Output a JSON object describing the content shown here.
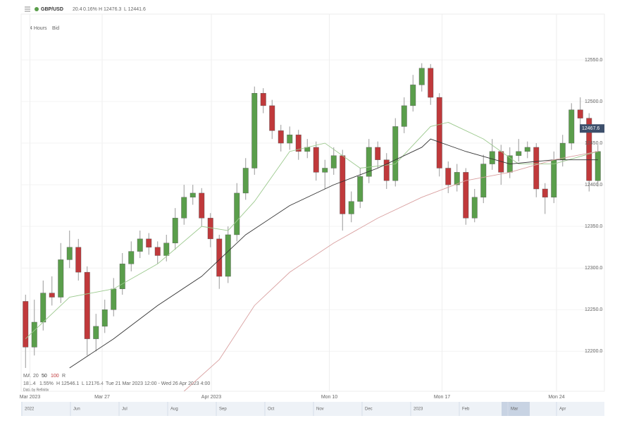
{
  "header": {
    "symbol": "GBP/USD",
    "change": "20.4",
    "change_pct": "0.16%",
    "high": "H 12476.3",
    "low": "L 12441.6",
    "interval": "4 Hours",
    "side": "Bid"
  },
  "legend": {
    "ma_label": "MA",
    "ma_periods": [
      "20",
      "50",
      "100"
    ],
    "reset": "R",
    "range_change": "181.4",
    "range_pct": "1.55%",
    "range_high": "H 12546.1",
    "range_low": "L 12176.4",
    "range_dates": "Tue 21 Mar 2023 12:00 - Wed 26 Apr 2023 4:00",
    "source": "Data by Refinitiv"
  },
  "navigator_labels": [
    "2022",
    "Jun",
    "Jul",
    "Aug",
    "Sep",
    "Oct",
    "Nov",
    "Dec",
    "2023",
    "Feb",
    "Mar",
    "Apr"
  ],
  "chart_data": {
    "type": "candlestick",
    "up_color": "#5a9e4b",
    "down_color": "#c0393b",
    "open": [
      12260,
      12205,
      12235,
      12270,
      12265,
      12310,
      12325,
      12295,
      12215,
      12230,
      12250,
      12275,
      12305,
      12320,
      12335,
      12325,
      12315,
      12330,
      12360,
      12385,
      12390,
      12360,
      12335,
      12290,
      12340,
      12390,
      12420,
      12510,
      12495,
      12465,
      12450,
      12460,
      12440,
      12445,
      12415,
      12420,
      12435,
      12365,
      12380,
      12410,
      12445,
      12430,
      12405,
      12470,
      12495,
      12520,
      12540,
      12505,
      12420,
      12400,
      12415,
      12360,
      12385,
      12425,
      12440,
      12415,
      12435,
      12440,
      12445,
      12395,
      12385,
      12430,
      12450,
      12490,
      12480,
      12405
    ],
    "high": [
      12268,
      12262,
      12285,
      12290,
      12330,
      12345,
      12335,
      12302,
      12245,
      12262,
      12288,
      12318,
      12332,
      12345,
      12342,
      12332,
      12340,
      12372,
      12400,
      12400,
      12396,
      12366,
      12340,
      12350,
      12402,
      12432,
      12518,
      12516,
      12502,
      12472,
      12470,
      12466,
      12455,
      12452,
      12430,
      12445,
      12442,
      12392,
      12420,
      12455,
      12452,
      12438,
      12480,
      12505,
      12532,
      12546,
      12545,
      12510,
      12428,
      12425,
      12420,
      12395,
      12436,
      12455,
      12448,
      12445,
      12455,
      12452,
      12450,
      12402,
      12440,
      12460,
      12498,
      12505,
      12486,
      12448
    ],
    "low": [
      12180,
      12195,
      12225,
      12255,
      12258,
      12300,
      12285,
      12195,
      12200,
      12222,
      12242,
      12268,
      12296,
      12312,
      12316,
      12305,
      12308,
      12322,
      12352,
      12376,
      12350,
      12325,
      12275,
      12282,
      12332,
      12382,
      12412,
      12486,
      12455,
      12440,
      12442,
      12430,
      12432,
      12405,
      12395,
      12412,
      12345,
      12355,
      12372,
      12402,
      12420,
      12395,
      12398,
      12462,
      12488,
      12512,
      12496,
      12410,
      12390,
      12392,
      12352,
      12355,
      12378,
      12418,
      12400,
      12408,
      12428,
      12432,
      12385,
      12365,
      12378,
      12422,
      12442,
      12472,
      12392,
      12398
    ],
    "close": [
      12205,
      12235,
      12270,
      12265,
      12310,
      12325,
      12295,
      12215,
      12230,
      12250,
      12275,
      12305,
      12320,
      12335,
      12325,
      12315,
      12330,
      12360,
      12385,
      12390,
      12360,
      12335,
      12290,
      12340,
      12390,
      12420,
      12510,
      12495,
      12465,
      12450,
      12460,
      12440,
      12445,
      12415,
      12420,
      12435,
      12365,
      12380,
      12410,
      12445,
      12430,
      12405,
      12470,
      12495,
      12520,
      12540,
      12505,
      12420,
      12400,
      12415,
      12360,
      12385,
      12425,
      12440,
      12415,
      12435,
      12440,
      12445,
      12395,
      12385,
      12430,
      12450,
      12490,
      12480,
      12405,
      12440
    ],
    "moving_averages": [
      {
        "color": "#9cc98e",
        "x": [
          0,
          5,
          10,
          15,
          20,
          23,
          26,
          30,
          34,
          38,
          42,
          46,
          48,
          52,
          56,
          60,
          65
        ],
        "values": [
          12215,
          12265,
          12275,
          12305,
          12350,
          12345,
          12380,
          12440,
          12450,
          12420,
          12425,
          12470,
          12475,
          12455,
          12425,
          12425,
          12440
        ]
      },
      {
        "color": "#333333",
        "x": [
          5,
          10,
          15,
          20,
          25,
          30,
          35,
          40,
          45,
          46,
          50,
          55,
          60,
          65
        ],
        "values": [
          12180,
          12215,
          12255,
          12290,
          12340,
          12375,
          12400,
          12420,
          12445,
          12455,
          12440,
          12425,
          12430,
          12430
        ]
      },
      {
        "color": "#d9a0a0",
        "x": [
          18,
          22,
          26,
          30,
          35,
          40,
          45,
          50,
          55,
          60,
          65
        ],
        "values": [
          12152,
          12190,
          12255,
          12295,
          12330,
          12360,
          12385,
          12405,
          12415,
          12430,
          12440
        ]
      }
    ],
    "last_price": 12467.6,
    "xlim": [
      -0.5,
      65.74
    ],
    "xticks": [
      {
        "value": 0.5,
        "label": "Mar 2023"
      },
      {
        "value": 8.7,
        "label": "Mar 27"
      },
      {
        "value": 21.1,
        "label": "Apr 2023"
      },
      {
        "value": 34.5,
        "label": "Mon 10"
      },
      {
        "value": 47.3,
        "label": "Mon 17"
      },
      {
        "value": 60.3,
        "label": "Mon 24"
      }
    ],
    "ylim": [
      12152,
      12605
    ],
    "yticks": [
      {
        "value": 12200,
        "label": "12200.0"
      },
      {
        "value": 12250,
        "label": "12250.0"
      },
      {
        "value": 12300,
        "label": "12300.0"
      },
      {
        "value": 12350,
        "label": "12350.0"
      },
      {
        "value": 12400,
        "label": "12400.0"
      },
      {
        "value": 12450,
        "label": "12450.0"
      },
      {
        "value": 12500,
        "label": "12500.0"
      },
      {
        "value": 12550,
        "label": "12550.0"
      }
    ]
  }
}
